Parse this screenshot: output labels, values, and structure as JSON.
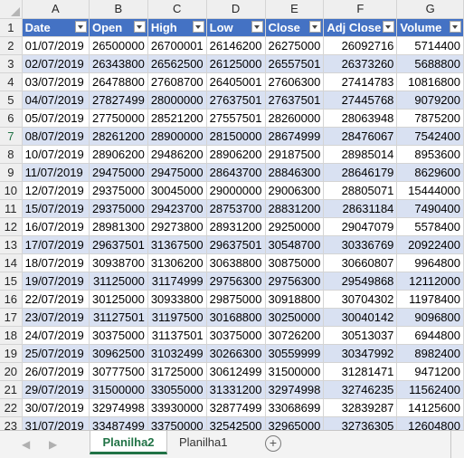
{
  "columns": [
    "A",
    "B",
    "C",
    "D",
    "E",
    "F",
    "G"
  ],
  "headers": [
    "Date",
    "Open",
    "High",
    "Low",
    "Close",
    "Adj Close",
    "Volume"
  ],
  "rows": [
    [
      "01/07/2019",
      "26500000",
      "26700001",
      "26146200",
      "26275000",
      "26092716",
      "5714400"
    ],
    [
      "02/07/2019",
      "26343800",
      "26562500",
      "26125000",
      "26557501",
      "26373260",
      "5688800"
    ],
    [
      "03/07/2019",
      "26478800",
      "27608700",
      "26405001",
      "27606300",
      "27414783",
      "10816800"
    ],
    [
      "04/07/2019",
      "27827499",
      "28000000",
      "27637501",
      "27637501",
      "27445768",
      "9079200"
    ],
    [
      "05/07/2019",
      "27750000",
      "28521200",
      "27557501",
      "28260000",
      "28063948",
      "7875200"
    ],
    [
      "08/07/2019",
      "28261200",
      "28900000",
      "28150000",
      "28674999",
      "28476067",
      "7542400"
    ],
    [
      "10/07/2019",
      "28906200",
      "29486200",
      "28906200",
      "29187500",
      "28985014",
      "8953600"
    ],
    [
      "11/07/2019",
      "29475000",
      "29475000",
      "28643700",
      "28846300",
      "28646179",
      "8629600"
    ],
    [
      "12/07/2019",
      "29375000",
      "30045000",
      "29000000",
      "29006300",
      "28805071",
      "15444000"
    ],
    [
      "15/07/2019",
      "29375000",
      "29423700",
      "28753700",
      "28831200",
      "28631184",
      "7490400"
    ],
    [
      "16/07/2019",
      "28981300",
      "29273800",
      "28931200",
      "29250000",
      "29047079",
      "5578400"
    ],
    [
      "17/07/2019",
      "29637501",
      "31367500",
      "29637501",
      "30548700",
      "30336769",
      "20922400"
    ],
    [
      "18/07/2019",
      "30938700",
      "31306200",
      "30638800",
      "30875000",
      "30660807",
      "9964800"
    ],
    [
      "19/07/2019",
      "31125000",
      "31174999",
      "29756300",
      "29756300",
      "29549868",
      "12112000"
    ],
    [
      "22/07/2019",
      "30125000",
      "30933800",
      "29875000",
      "30918800",
      "30704302",
      "11978400"
    ],
    [
      "23/07/2019",
      "31127501",
      "31197500",
      "30168800",
      "30250000",
      "30040142",
      "9096800"
    ],
    [
      "24/07/2019",
      "30375000",
      "31137501",
      "30375000",
      "30726200",
      "30513037",
      "6944800"
    ],
    [
      "25/07/2019",
      "30962500",
      "31032499",
      "30266300",
      "30559999",
      "30347992",
      "8982400"
    ],
    [
      "26/07/2019",
      "30777500",
      "31725000",
      "30612499",
      "31500000",
      "31281471",
      "9471200"
    ],
    [
      "29/07/2019",
      "31500000",
      "33055000",
      "31331200",
      "32974998",
      "32746235",
      "11562400"
    ],
    [
      "30/07/2019",
      "32974998",
      "33930000",
      "32877499",
      "33068699",
      "32839287",
      "14125600"
    ],
    [
      "31/07/2019",
      "33487499",
      "33750000",
      "32542500",
      "32965000",
      "32736305",
      "12604800"
    ]
  ],
  "tabs": [
    {
      "label": "Planilha2",
      "active": true
    },
    {
      "label": "Planilha1",
      "active": false
    }
  ],
  "add_sheet_symbol": "+",
  "nav_prev_symbol": "◀",
  "nav_next_symbol": "▶",
  "colors": {
    "header_fill": "#4472c4",
    "band_fill": "#d9e1f2",
    "active_tab": "#217346"
  }
}
